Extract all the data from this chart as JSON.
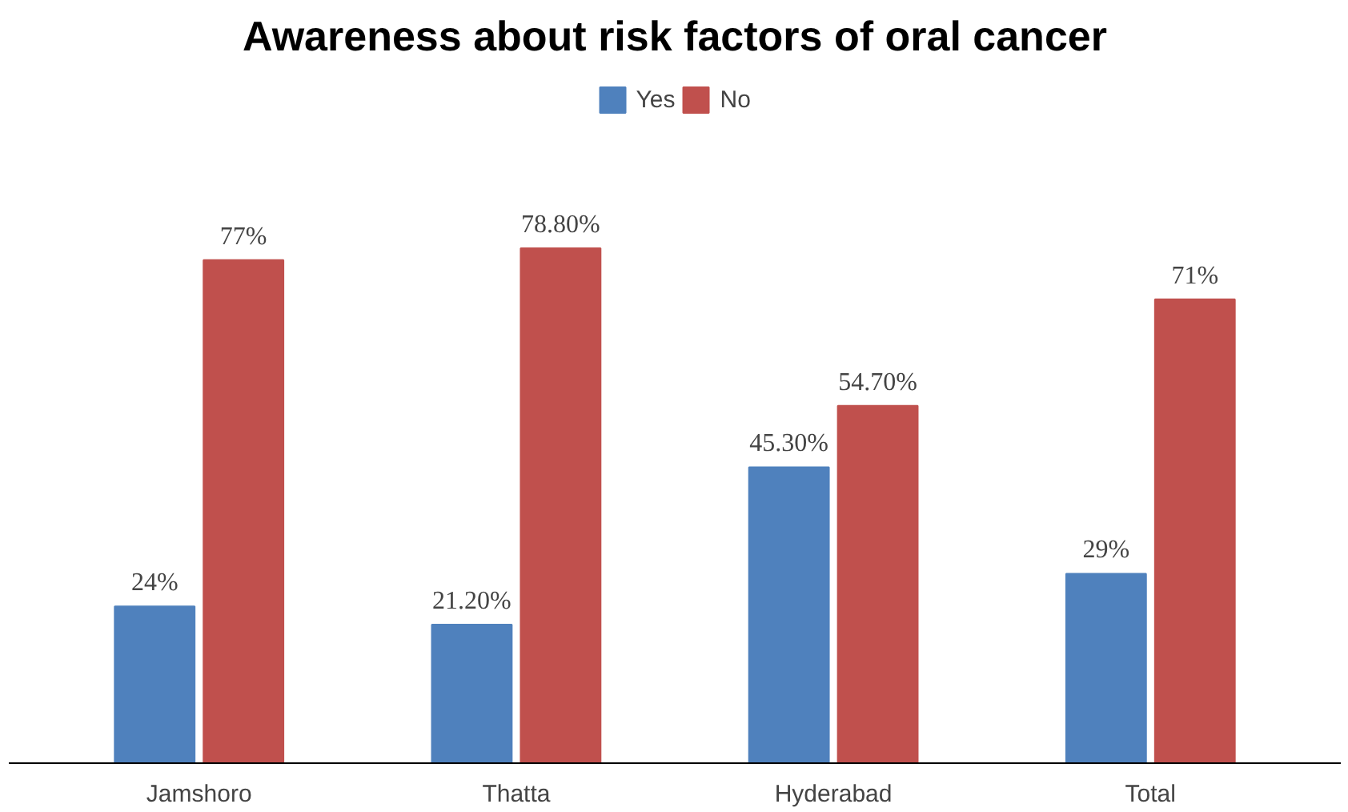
{
  "chart_data": {
    "type": "bar",
    "title": "Awareness about risk factors of oral cancer",
    "categories": [
      "Jamshoro",
      "Thatta",
      "Hyderabad",
      "Total"
    ],
    "series": [
      {
        "name": "Yes",
        "color": "#4f81bd",
        "values": [
          24,
          21.2,
          45.3,
          29
        ],
        "value_labels": [
          "24%",
          "21.20%",
          "45.30%",
          "29%"
        ]
      },
      {
        "name": "No",
        "color": "#c0504d",
        "values": [
          77,
          78.8,
          54.7,
          71
        ],
        "value_labels": [
          "77%",
          "78.80%",
          "54.70%",
          "71%"
        ]
      }
    ],
    "legend": "top",
    "grid": false,
    "tick_labels": "x"
  }
}
